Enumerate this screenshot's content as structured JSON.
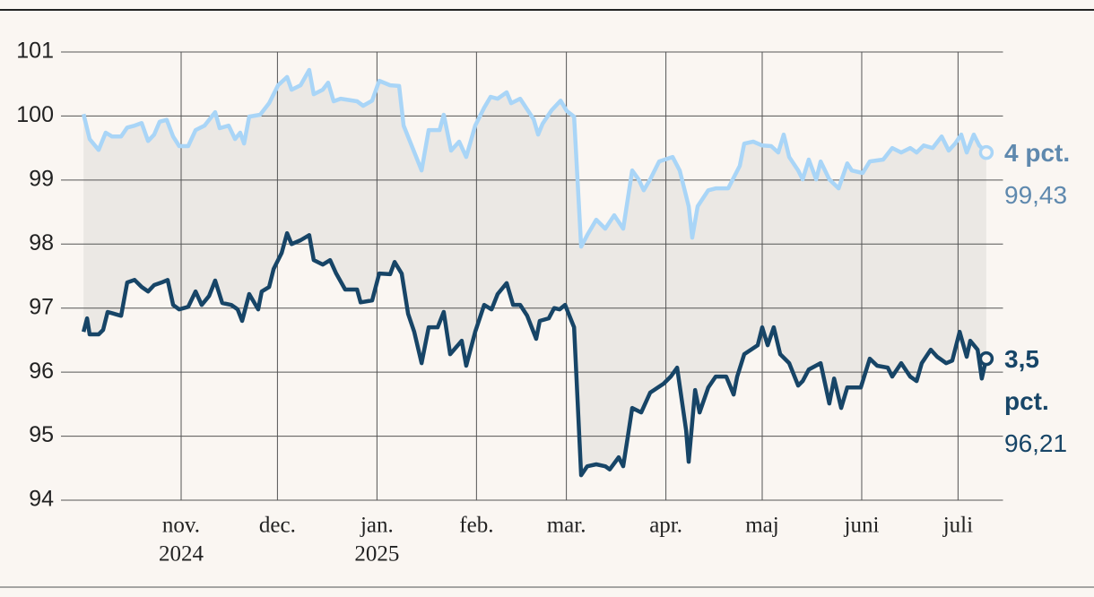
{
  "chart_data": {
    "type": "line",
    "xlim": [
      -14,
      287
    ],
    "ylim": [
      94,
      101
    ],
    "yticks": [
      94,
      95,
      96,
      97,
      98,
      99,
      100,
      101
    ],
    "xticks": [
      {
        "value": 31,
        "label": "nov."
      },
      {
        "value": 61,
        "label": "dec."
      },
      {
        "value": 92,
        "label": "jan."
      },
      {
        "value": 123,
        "label": "feb."
      },
      {
        "value": 151,
        "label": "mar."
      },
      {
        "value": 182,
        "label": "apr."
      },
      {
        "value": 212,
        "label": "maj"
      },
      {
        "value": 243,
        "label": "juni"
      },
      {
        "value": 273,
        "label": "juli"
      }
    ],
    "x_year_labels": [
      {
        "value": 31,
        "label": "2024"
      },
      {
        "value": 92,
        "label": "2025"
      }
    ],
    "grid": true,
    "band_color": "#ebe8e4",
    "series": [
      {
        "name": "4 pct.",
        "color": "#a9d5f7",
        "label_color": "#5f89ae",
        "end_label": {
          "value": 99.43,
          "label": "99,43"
        },
        "x": [
          0.6,
          2.5,
          5.3,
          7.5,
          9.5,
          12.3,
          14.2,
          16.5,
          18.7,
          20.7,
          22.6,
          24.3,
          26.5,
          28.5,
          30.4,
          33.2,
          35.5,
          38.3,
          41.6,
          43.0,
          45.8,
          47.8,
          49.4,
          50.6,
          52.2,
          55.6,
          58.4,
          61.2,
          64.0,
          65.4,
          68.2,
          70.9,
          72.3,
          75.1,
          76.8,
          78.5,
          80.7,
          85.8,
          87.7,
          90.5,
          92.7,
          96.1,
          98.9,
          100.3,
          103.1,
          105.9,
          108.1,
          111.5,
          112.8,
          115.1,
          117.6,
          119.8,
          122.6,
          125.4,
          127.4,
          129.6,
          132.4,
          133.8,
          136.6,
          140.8,
          142.2,
          143.6,
          146.4,
          149.2,
          151.1,
          153.4,
          155.6,
          157.5,
          160.3,
          163.1,
          165.9,
          168.7,
          171.5,
          173.5,
          175.1,
          177.1,
          179.9,
          184.1,
          186.3,
          189.1,
          190.2,
          191.9,
          195.2,
          197.5,
          201.4,
          205.0,
          206.4,
          209.2,
          212.0,
          214.8,
          217.0,
          218.7,
          220.4,
          223.2,
          224.6,
          226.5,
          228.8,
          230.2,
          232.9,
          235.8,
          238.5,
          239.9,
          243.3,
          245.5,
          249.7,
          252.5,
          255.3,
          258.1,
          260.1,
          262.3,
          265.1,
          267.9,
          270.1,
          272.1,
          274.0,
          275.7,
          277.9,
          279.6,
          281.8
        ],
        "values": [
          100.03,
          99.64,
          99.47,
          99.74,
          99.68,
          99.68,
          99.82,
          99.85,
          99.89,
          99.61,
          99.71,
          99.91,
          99.94,
          99.68,
          99.53,
          99.53,
          99.78,
          99.85,
          100.06,
          99.81,
          99.85,
          99.64,
          99.74,
          99.57,
          99.99,
          100.02,
          100.2,
          100.48,
          100.61,
          100.41,
          100.48,
          100.72,
          100.34,
          100.41,
          100.52,
          100.23,
          100.27,
          100.23,
          100.16,
          100.24,
          100.55,
          100.48,
          100.47,
          99.85,
          99.5,
          99.15,
          99.78,
          99.78,
          100.02,
          99.46,
          99.6,
          99.36,
          99.85,
          100.13,
          100.3,
          100.27,
          100.37,
          100.2,
          100.27,
          99.95,
          99.71,
          99.88,
          100.09,
          100.24,
          100.08,
          99.99,
          97.96,
          98.14,
          98.38,
          98.24,
          98.45,
          98.24,
          99.15,
          99.01,
          98.84,
          99.01,
          99.29,
          99.36,
          99.15,
          98.59,
          98.1,
          98.59,
          98.84,
          98.87,
          98.87,
          99.22,
          99.57,
          99.6,
          99.54,
          99.53,
          99.43,
          99.71,
          99.36,
          99.15,
          99.01,
          99.32,
          99.01,
          99.29,
          99.01,
          98.87,
          99.26,
          99.15,
          99.11,
          99.29,
          99.32,
          99.5,
          99.43,
          99.5,
          99.43,
          99.54,
          99.5,
          99.68,
          99.46,
          99.57,
          99.71,
          99.43,
          99.71,
          99.54,
          99.43
        ]
      },
      {
        "name": "3,5 pct.",
        "color": "#174567",
        "label_color": "#174567",
        "end_label": {
          "value": 96.21,
          "label": "96,21"
        },
        "x": [
          0.6,
          1.7,
          2.5,
          5.3,
          6.7,
          8.1,
          12.3,
          14.2,
          16.5,
          18.7,
          20.7,
          22.6,
          24.9,
          26.8,
          28.5,
          30.4,
          33.2,
          35.5,
          37.4,
          39.7,
          41.6,
          43.8,
          46.6,
          48.6,
          50.0,
          52.2,
          55.0,
          56.1,
          58.4,
          59.8,
          62.3,
          64.0,
          65.4,
          68.2,
          70.9,
          72.3,
          75.1,
          77.4,
          79.3,
          82.1,
          85.8,
          86.9,
          90.5,
          92.7,
          96.1,
          97.5,
          99.7,
          101.7,
          103.6,
          105.9,
          108.1,
          110.9,
          112.8,
          114.8,
          118.4,
          119.8,
          122.6,
          125.4,
          127.7,
          129.6,
          132.4,
          134.4,
          136.6,
          138.8,
          141.6,
          142.7,
          145.5,
          147.2,
          148.9,
          150.6,
          153.4,
          155.6,
          157.5,
          160.3,
          163.1,
          164.5,
          167.3,
          168.7,
          170.1,
          171.5,
          174.3,
          177.1,
          181.3,
          183.5,
          185.5,
          188.3,
          189.1,
          191.1,
          192.5,
          195.2,
          197.5,
          200.8,
          203.1,
          204.2,
          206.4,
          210.6,
          212.0,
          213.7,
          215.6,
          217.6,
          220.4,
          223.2,
          224.6,
          226.5,
          230.2,
          232.9,
          234.4,
          236.6,
          238.5,
          242.7,
          245.5,
          247.8,
          251.1,
          252.5,
          255.3,
          258.1,
          260.1,
          261.7,
          264.5,
          266.5,
          269.3,
          271.2,
          273.5,
          275.7,
          276.8,
          279.1,
          280.4,
          281.8
        ],
        "values": [
          96.63,
          96.84,
          96.59,
          96.59,
          96.66,
          96.94,
          96.88,
          97.4,
          97.44,
          97.33,
          97.26,
          97.36,
          97.4,
          97.44,
          97.05,
          96.98,
          97.02,
          97.26,
          97.05,
          97.19,
          97.43,
          97.08,
          97.05,
          96.98,
          96.8,
          97.22,
          96.98,
          97.26,
          97.33,
          97.61,
          97.86,
          98.17,
          98.0,
          98.06,
          98.14,
          97.75,
          97.68,
          97.75,
          97.54,
          97.29,
          97.29,
          97.09,
          97.12,
          97.54,
          97.53,
          97.72,
          97.54,
          96.91,
          96.63,
          96.14,
          96.7,
          96.7,
          96.94,
          96.28,
          96.49,
          96.1,
          96.63,
          97.05,
          96.98,
          97.22,
          97.39,
          97.05,
          97.05,
          96.88,
          96.52,
          96.8,
          96.84,
          97.0,
          96.98,
          97.05,
          96.7,
          94.39,
          94.53,
          94.56,
          94.53,
          94.48,
          94.67,
          94.53,
          94.98,
          95.44,
          95.37,
          95.68,
          95.82,
          95.93,
          96.07,
          95.09,
          94.6,
          95.72,
          95.37,
          95.76,
          95.93,
          95.93,
          95.65,
          95.93,
          96.28,
          96.42,
          96.7,
          96.42,
          96.7,
          96.28,
          96.14,
          95.79,
          95.86,
          96.04,
          96.14,
          95.51,
          95.9,
          95.44,
          95.76,
          95.76,
          96.21,
          96.1,
          96.07,
          95.93,
          96.14,
          95.93,
          95.86,
          96.14,
          96.35,
          96.24,
          96.14,
          96.18,
          96.63,
          96.24,
          96.49,
          96.35,
          95.9,
          96.21
        ]
      }
    ]
  }
}
